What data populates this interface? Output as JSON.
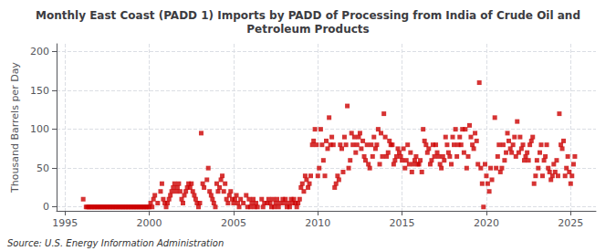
{
  "chart_data": {
    "type": "scatter",
    "title": "Monthly East Coast (PADD 1) Imports by PADD of Processing from India of Crude Oil and\nPetroleum Products",
    "ylabel": "Thousand Barrels per Day",
    "source": "Source: U.S. Energy Information Administration",
    "color": "#cc0000",
    "marker": "square",
    "grid": true,
    "xlim": [
      1994.5,
      2026.5
    ],
    "ylim": [
      -5,
      210
    ],
    "xticks": [
      1995,
      2000,
      2005,
      2010,
      2015,
      2020,
      2025
    ],
    "yticks": [
      0,
      50,
      100,
      150,
      200
    ],
    "x": [
      1996.08,
      1996.25,
      1996.33,
      1996.42,
      1996.5,
      1996.58,
      1996.67,
      1996.75,
      1996.83,
      1996.92,
      1997.0,
      1997.08,
      1997.17,
      1997.25,
      1997.33,
      1997.42,
      1997.5,
      1997.58,
      1997.67,
      1997.75,
      1997.83,
      1997.92,
      1998.0,
      1998.08,
      1998.17,
      1998.25,
      1998.33,
      1998.42,
      1998.5,
      1998.58,
      1998.67,
      1998.75,
      1998.83,
      1998.92,
      1999.0,
      1999.08,
      1999.17,
      1999.25,
      1999.33,
      1999.42,
      1999.5,
      1999.58,
      1999.67,
      1999.75,
      1999.83,
      1999.92,
      2000.0,
      2000.08,
      2000.17,
      2000.25,
      2000.33,
      2000.5,
      2000.67,
      2000.75,
      2000.83,
      2000.92,
      2001.0,
      2001.08,
      2001.17,
      2001.25,
      2001.33,
      2001.42,
      2001.5,
      2001.58,
      2001.67,
      2001.75,
      2001.83,
      2001.92,
      2002.0,
      2002.08,
      2002.17,
      2002.25,
      2002.33,
      2002.42,
      2002.5,
      2002.58,
      2002.67,
      2002.75,
      2002.83,
      2002.92,
      2003.0,
      2003.08,
      2003.17,
      2003.25,
      2003.42,
      2003.5,
      2003.58,
      2003.67,
      2003.75,
      2003.83,
      2003.92,
      2004.0,
      2004.08,
      2004.17,
      2004.25,
      2004.33,
      2004.42,
      2004.5,
      2004.58,
      2004.67,
      2004.75,
      2004.83,
      2004.92,
      2005.0,
      2005.08,
      2005.17,
      2005.25,
      2005.33,
      2005.42,
      2005.58,
      2005.75,
      2005.83,
      2005.92,
      2006.0,
      2006.08,
      2006.17,
      2006.25,
      2006.33,
      2006.42,
      2006.67,
      2006.75,
      2006.83,
      2007.0,
      2007.08,
      2007.17,
      2007.25,
      2007.33,
      2007.42,
      2007.5,
      2007.58,
      2007.67,
      2007.75,
      2007.92,
      2008.0,
      2008.08,
      2008.17,
      2008.25,
      2008.33,
      2008.42,
      2008.5,
      2008.58,
      2008.67,
      2008.75,
      2008.83,
      2008.92,
      2009.0,
      2009.08,
      2009.17,
      2009.25,
      2009.33,
      2009.42,
      2009.5,
      2009.58,
      2009.67,
      2009.75,
      2009.83,
      2009.92,
      2010.0,
      2010.08,
      2010.17,
      2010.25,
      2010.33,
      2010.42,
      2010.5,
      2010.58,
      2010.67,
      2010.75,
      2010.83,
      2010.92,
      2011.0,
      2011.08,
      2011.17,
      2011.25,
      2011.33,
      2011.42,
      2011.5,
      2011.58,
      2011.67,
      2011.75,
      2011.83,
      2011.92,
      2012.0,
      2012.08,
      2012.17,
      2012.25,
      2012.33,
      2012.42,
      2012.5,
      2012.58,
      2012.67,
      2012.75,
      2012.83,
      2012.92,
      2013.0,
      2013.08,
      2013.17,
      2013.25,
      2013.33,
      2013.42,
      2013.5,
      2013.58,
      2013.67,
      2013.75,
      2013.83,
      2013.92,
      2014.0,
      2014.08,
      2014.17,
      2014.25,
      2014.33,
      2014.42,
      2014.5,
      2014.58,
      2014.67,
      2014.75,
      2014.83,
      2014.92,
      2015.0,
      2015.08,
      2015.17,
      2015.25,
      2015.33,
      2015.42,
      2015.5,
      2015.58,
      2015.67,
      2015.75,
      2015.83,
      2015.92,
      2016.0,
      2016.08,
      2016.17,
      2016.25,
      2016.33,
      2016.42,
      2016.5,
      2016.58,
      2016.67,
      2016.75,
      2016.83,
      2016.92,
      2017.0,
      2017.08,
      2017.17,
      2017.25,
      2017.33,
      2017.42,
      2017.5,
      2017.58,
      2017.67,
      2017.75,
      2017.83,
      2017.92,
      2018.0,
      2018.08,
      2018.17,
      2018.25,
      2018.33,
      2018.42,
      2018.5,
      2018.58,
      2018.67,
      2018.75,
      2018.83,
      2018.92,
      2019.0,
      2019.08,
      2019.17,
      2019.25,
      2019.33,
      2019.42,
      2019.5,
      2019.58,
      2019.67,
      2019.75,
      2019.83,
      2019.92,
      2020.0,
      2020.08,
      2020.17,
      2020.25,
      2020.33,
      2020.5,
      2020.58,
      2020.67,
      2020.75,
      2020.83,
      2020.92,
      2021.0,
      2021.08,
      2021.17,
      2021.25,
      2021.33,
      2021.42,
      2021.5,
      2021.58,
      2021.67,
      2021.75,
      2021.83,
      2021.92,
      2022.0,
      2022.08,
      2022.17,
      2022.25,
      2022.33,
      2022.42,
      2022.5,
      2022.58,
      2022.67,
      2022.75,
      2022.83,
      2022.92,
      2023.0,
      2023.08,
      2023.17,
      2023.25,
      2023.33,
      2023.42,
      2023.5,
      2023.58,
      2023.67,
      2023.75,
      2023.83,
      2023.92,
      2024.0,
      2024.08,
      2024.17,
      2024.25,
      2024.33,
      2024.42,
      2024.5,
      2024.58,
      2024.67,
      2024.75,
      2024.83,
      2024.92,
      2025.0,
      2025.08,
      2025.17,
      2025.25
    ],
    "values": [
      10,
      0,
      0,
      0,
      0,
      0,
      0,
      0,
      0,
      0,
      0,
      0,
      0,
      0,
      0,
      0,
      0,
      0,
      0,
      0,
      0,
      0,
      0,
      0,
      0,
      0,
      0,
      0,
      0,
      0,
      0,
      0,
      0,
      0,
      0,
      0,
      0,
      0,
      0,
      0,
      0,
      0,
      0,
      0,
      0,
      0,
      0,
      5,
      0,
      10,
      15,
      5,
      20,
      30,
      10,
      5,
      0,
      5,
      10,
      15,
      20,
      25,
      30,
      20,
      25,
      30,
      20,
      10,
      5,
      15,
      20,
      25,
      30,
      25,
      30,
      20,
      15,
      10,
      5,
      0,
      5,
      95,
      30,
      25,
      35,
      50,
      20,
      15,
      10,
      5,
      0,
      30,
      20,
      25,
      35,
      40,
      20,
      30,
      10,
      5,
      15,
      20,
      10,
      5,
      10,
      15,
      5,
      0,
      10,
      5,
      15,
      0,
      10,
      0,
      5,
      10,
      0,
      5,
      0,
      10,
      0,
      5,
      5,
      10,
      5,
      0,
      10,
      0,
      5,
      10,
      0,
      5,
      10,
      5,
      10,
      0,
      5,
      0,
      10,
      5,
      10,
      5,
      0,
      5,
      10,
      25,
      30,
      20,
      40,
      35,
      25,
      30,
      40,
      80,
      85,
      100,
      80,
      40,
      50,
      100,
      80,
      60,
      40,
      85,
      75,
      115,
      80,
      90,
      80,
      25,
      30,
      40,
      35,
      80,
      75,
      45,
      90,
      80,
      130,
      50,
      60,
      95,
      80,
      90,
      70,
      80,
      90,
      95,
      75,
      85,
      65,
      60,
      80,
      55,
      50,
      80,
      65,
      90,
      75,
      80,
      100,
      55,
      95,
      65,
      120,
      90,
      65,
      70,
      85,
      80,
      80,
      55,
      60,
      65,
      75,
      70,
      65,
      60,
      75,
      50,
      60,
      80,
      55,
      70,
      45,
      55,
      60,
      65,
      55,
      55,
      60,
      45,
      100,
      85,
      80,
      70,
      75,
      55,
      60,
      80,
      65,
      80,
      70,
      65,
      55,
      50,
      65,
      60,
      90,
      80,
      70,
      65,
      55,
      90,
      80,
      100,
      65,
      80,
      90,
      80,
      100,
      70,
      100,
      50,
      65,
      105,
      90,
      80,
      75,
      95,
      85,
      55,
      160,
      50,
      30,
      0,
      55,
      40,
      30,
      20,
      50,
      35,
      115,
      50,
      65,
      80,
      45,
      50,
      80,
      60,
      70,
      95,
      85,
      75,
      70,
      80,
      90,
      65,
      110,
      70,
      90,
      75,
      80,
      60,
      65,
      70,
      60,
      80,
      85,
      90,
      30,
      40,
      60,
      50,
      70,
      80,
      40,
      60,
      65,
      80,
      50,
      45,
      35,
      40,
      55,
      45,
      60,
      40,
      120,
      80,
      75,
      85,
      40,
      50,
      65,
      45,
      30,
      40,
      55,
      65
    ]
  }
}
